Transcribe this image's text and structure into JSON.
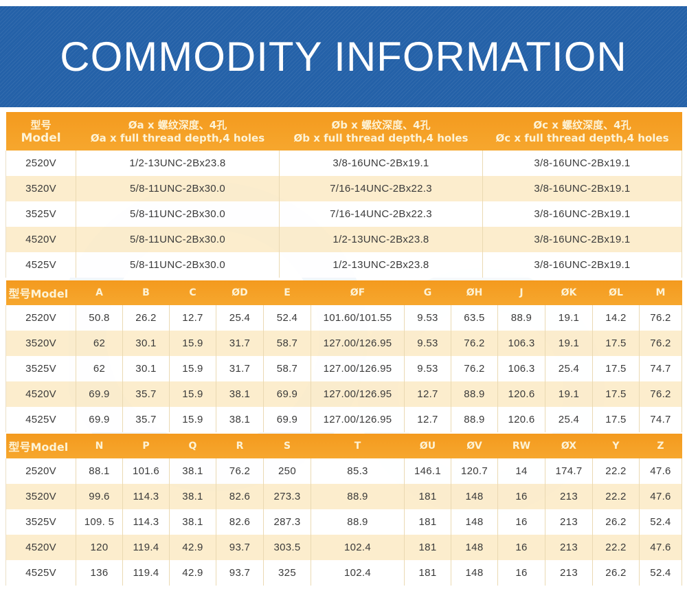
{
  "banner": {
    "title": "COMMODITY INFORMATION",
    "color": "#2461a8"
  },
  "colors": {
    "header_orange": "#f49a1e",
    "header_text": "#fdf3d6",
    "row_alt": "#fcebc5",
    "row_white": "#ffffff"
  },
  "table1": {
    "headers": [
      {
        "line1": "型号",
        "line2": "Model"
      },
      {
        "line1": "Øa x 螺纹深度、4孔",
        "line2": "Øa x full thread depth,4 holes"
      },
      {
        "line1": "Øb x 螺纹深度、4孔",
        "line2": "Øb x full thread depth,4 holes"
      },
      {
        "line1": "Øc x 螺纹深度、4孔",
        "line2": "Øc x full thread depth,4 holes"
      }
    ],
    "rows": [
      [
        "2520V",
        "1/2-13UNC-2Bx23.8",
        "3/8-16UNC-2Bx19.1",
        "3/8-16UNC-2Bx19.1"
      ],
      [
        "3520V",
        "5/8-11UNC-2Bx30.0",
        "7/16-14UNC-2Bx22.3",
        "3/8-16UNC-2Bx19.1"
      ],
      [
        "3525V",
        "5/8-11UNC-2Bx30.0",
        "7/16-14UNC-2Bx22.3",
        "3/8-16UNC-2Bx19.1"
      ],
      [
        "4520V",
        "5/8-11UNC-2Bx30.0",
        "1/2-13UNC-2Bx23.8",
        "3/8-16UNC-2Bx19.1"
      ],
      [
        "4525V",
        "5/8-11UNC-2Bx30.0",
        "1/2-13UNC-2Bx23.8",
        "3/8-16UNC-2Bx19.1"
      ]
    ]
  },
  "table2": {
    "headers": [
      "型号Model",
      "A",
      "B",
      "C",
      "ØD",
      "E",
      "ØF",
      "G",
      "ØH",
      "J",
      "ØK",
      "ØL",
      "M"
    ],
    "rows": [
      [
        "2520V",
        "50.8",
        "26.2",
        "12.7",
        "25.4",
        "52.4",
        "101.60/101.55",
        "9.53",
        "63.5",
        "88.9",
        "19.1",
        "14.2",
        "76.2"
      ],
      [
        "3520V",
        "62",
        "30.1",
        "15.9",
        "31.7",
        "58.7",
        "127.00/126.95",
        "9.53",
        "76.2",
        "106.3",
        "19.1",
        "17.5",
        "76.2"
      ],
      [
        "3525V",
        "62",
        "30.1",
        "15.9",
        "31.7",
        "58.7",
        "127.00/126.95",
        "9.53",
        "76.2",
        "106.3",
        "25.4",
        "17.5",
        "74.7"
      ],
      [
        "4520V",
        "69.9",
        "35.7",
        "15.9",
        "38.1",
        "69.9",
        "127.00/126.95",
        "12.7",
        "88.9",
        "120.6",
        "19.1",
        "17.5",
        "76.2"
      ],
      [
        "4525V",
        "69.9",
        "35.7",
        "15.9",
        "38.1",
        "69.9",
        "127.00/126.95",
        "12.7",
        "88.9",
        "120.6",
        "25.4",
        "17.5",
        "74.7"
      ]
    ]
  },
  "table3": {
    "headers": [
      "型号Model",
      "N",
      "P",
      "Q",
      "R",
      "S",
      "T",
      "ØU",
      "ØV",
      "RW",
      "ØX",
      "Y",
      "Z"
    ],
    "rows": [
      [
        "2520V",
        "88.1",
        "101.6",
        "38.1",
        "76.2",
        "250",
        "85.3",
        "146.1",
        "120.7",
        "14",
        "174.7",
        "22.2",
        "47.6"
      ],
      [
        "3520V",
        "99.6",
        "114.3",
        "38.1",
        "82.6",
        "273.3",
        "88.9",
        "181",
        "148",
        "16",
        "213",
        "22.2",
        "47.6"
      ],
      [
        "3525V",
        "109. 5",
        "114.3",
        "38.1",
        "82.6",
        "287.3",
        "88.9",
        "181",
        "148",
        "16",
        "213",
        "26.2",
        "52.4"
      ],
      [
        "4520V",
        "120",
        "119.4",
        "42.9",
        "93.7",
        "303.5",
        "102.4",
        "181",
        "148",
        "16",
        "213",
        "22.2",
        "47.6"
      ],
      [
        "4525V",
        "136",
        "119.4",
        "42.9",
        "93.7",
        "325",
        "102.4",
        "181",
        "148",
        "16",
        "213",
        "26.2",
        "52.4"
      ]
    ]
  }
}
